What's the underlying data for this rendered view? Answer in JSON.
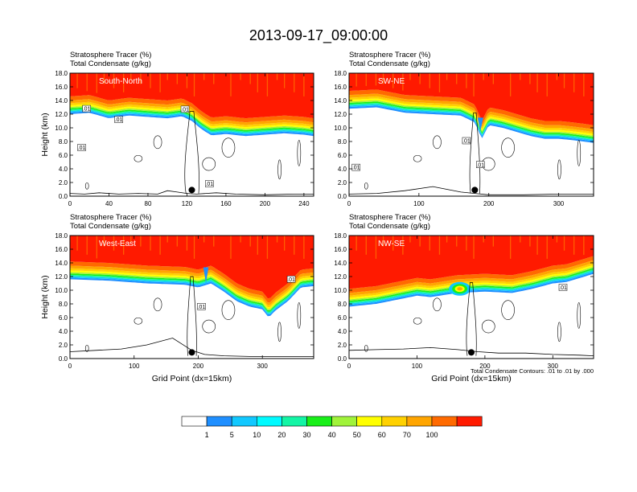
{
  "figure": {
    "title": "2013-09-17_09:00:00",
    "note": "Total Condensate Contours: .01 to .01 by .000"
  },
  "colors": {
    "levels": [
      "#ffffff",
      "#1f8fff",
      "#11c8ff",
      "#00fbff",
      "#13f5a5",
      "#19ef19",
      "#a0f33a",
      "#ffff00",
      "#ffd100",
      "#ffa500",
      "#ff6a00",
      "#ff1a00"
    ],
    "contour": "#000000",
    "frame": "#000000"
  },
  "legend": {
    "labels": [
      "1",
      "5",
      "10",
      "20",
      "30",
      "40",
      "50",
      "60",
      "70",
      "100"
    ]
  },
  "chart_data": [
    {
      "type": "heatmap",
      "region": "South-North",
      "title_lines": [
        "Stratosphere Tracer   (%)",
        "Total Condensate   (g/kg)"
      ],
      "ylabel": "Height (km)",
      "xlabel": "",
      "xlim": [
        0,
        250
      ],
      "ylim": [
        0,
        18
      ],
      "xticks": [
        "0",
        "40",
        "80",
        "120",
        "160",
        "200",
        "240"
      ],
      "yticks": [
        "0.0",
        "2.0",
        "4.0",
        "6.0",
        "8.0",
        "10.0",
        "12.0",
        "14.0",
        "16.0",
        "18.0"
      ],
      "tropopause": [
        [
          0,
          14.6
        ],
        [
          20,
          14.8
        ],
        [
          40,
          14.0
        ],
        [
          60,
          14.4
        ],
        [
          80,
          14.2
        ],
        [
          100,
          14.0
        ],
        [
          115,
          14.3
        ],
        [
          125,
          13.6
        ],
        [
          135,
          12.4
        ],
        [
          145,
          11.5
        ],
        [
          160,
          11.7
        ],
        [
          180,
          11.4
        ],
        [
          200,
          11.6
        ],
        [
          220,
          11.8
        ],
        [
          240,
          11.6
        ],
        [
          250,
          11.4
        ]
      ],
      "bump": null,
      "deep_cols": [],
      "contour_labels": [
        {
          "x": 17,
          "y": 12.7,
          "text": ".01"
        },
        {
          "x": 50,
          "y": 11.1,
          "text": ".01"
        },
        {
          "x": 12,
          "y": 7.0,
          "text": ".01"
        },
        {
          "x": 118,
          "y": 12.6,
          "text": ".01"
        },
        {
          "x": 143,
          "y": 1.7,
          "text": ".01"
        }
      ],
      "marker": {
        "x": 125,
        "y": 0.9
      },
      "terrain": [
        [
          0,
          0.4
        ],
        [
          15,
          0.3
        ],
        [
          30,
          0.5
        ],
        [
          50,
          0.3
        ],
        [
          70,
          0.4
        ],
        [
          90,
          0.3
        ],
        [
          100,
          0.8
        ],
        [
          110,
          0.6
        ],
        [
          120,
          0.4
        ],
        [
          130,
          0.3
        ],
        [
          150,
          0.5
        ],
        [
          170,
          0.3
        ],
        [
          200,
          0.2
        ],
        [
          230,
          0.3
        ],
        [
          250,
          0.3
        ]
      ]
    },
    {
      "type": "heatmap",
      "region": "SW-NE",
      "title_lines": [
        "Stratosphere Tracer   (%)",
        "Total Condensate   (g/kg)"
      ],
      "ylabel": "",
      "xlabel": "",
      "xlim": [
        0,
        350
      ],
      "ylim": [
        0,
        18
      ],
      "xticks": [
        "0",
        "100",
        "200",
        "300"
      ],
      "yticks": [
        "0.0",
        "2.0",
        "4.0",
        "6.0",
        "8.0",
        "10.0",
        "12.0",
        "14.0",
        "16.0",
        "18.0"
      ],
      "tropopause": [
        [
          0,
          15.4
        ],
        [
          40,
          15.6
        ],
        [
          80,
          14.8
        ],
        [
          120,
          14.6
        ],
        [
          160,
          14.4
        ],
        [
          180,
          13.4
        ],
        [
          190,
          11.0
        ],
        [
          200,
          13.0
        ],
        [
          220,
          12.6
        ],
        [
          240,
          12.0
        ],
        [
          260,
          11.4
        ],
        [
          280,
          11.0
        ],
        [
          300,
          11.0
        ],
        [
          320,
          10.8
        ],
        [
          350,
          10.4
        ]
      ],
      "bump": null,
      "deep_cols": [
        {
          "x": 188,
          "top": 9.5
        }
      ],
      "contour_labels": [
        {
          "x": 10,
          "y": 4.1,
          "text": ".01"
        },
        {
          "x": 168,
          "y": 8.0,
          "text": ".01"
        },
        {
          "x": 188,
          "y": 4.5,
          "text": ".01"
        }
      ],
      "marker": {
        "x": 180,
        "y": 0.9
      },
      "terrain": [
        [
          0,
          0.3
        ],
        [
          40,
          0.4
        ],
        [
          80,
          0.8
        ],
        [
          120,
          1.4
        ],
        [
          140,
          1.0
        ],
        [
          160,
          0.6
        ],
        [
          180,
          0.4
        ],
        [
          200,
          0.2
        ],
        [
          250,
          0.2
        ],
        [
          300,
          0.3
        ],
        [
          350,
          0.3
        ]
      ]
    },
    {
      "type": "heatmap",
      "region": "West-East",
      "title_lines": [
        "Stratosphere Tracer   (%)",
        "Total Condensate   (g/kg)"
      ],
      "ylabel": "Height (km)",
      "xlabel": "Grid Point (dx=15km)",
      "xlim": [
        0,
        380
      ],
      "ylim": [
        0,
        18
      ],
      "xticks": [
        "0",
        "100",
        "200",
        "300"
      ],
      "yticks": [
        "0.0",
        "2.0",
        "4.0",
        "6.0",
        "8.0",
        "10.0",
        "12.0",
        "14.0",
        "16.0",
        "18.0"
      ],
      "tropopause": [
        [
          0,
          14.2
        ],
        [
          60,
          14.0
        ],
        [
          120,
          13.6
        ],
        [
          180,
          13.4
        ],
        [
          200,
          13.0
        ],
        [
          220,
          13.6
        ],
        [
          240,
          12.4
        ],
        [
          260,
          11.0
        ],
        [
          280,
          10.2
        ],
        [
          300,
          9.8
        ],
        [
          310,
          8.6
        ],
        [
          320,
          9.6
        ],
        [
          340,
          11.0
        ],
        [
          360,
          13.0
        ],
        [
          380,
          13.2
        ]
      ],
      "bump": null,
      "deep_cols": [
        {
          "x": 212,
          "top": 11.0
        }
      ],
      "contour_labels": [
        {
          "x": 205,
          "y": 7.5,
          "text": ".01"
        },
        {
          "x": 345,
          "y": 11.5,
          "text": ".01"
        }
      ],
      "marker": {
        "x": 190,
        "y": 0.9
      },
      "terrain": [
        [
          0,
          1.0
        ],
        [
          40,
          1.2
        ],
        [
          80,
          1.4
        ],
        [
          120,
          2.0
        ],
        [
          160,
          3.0
        ],
        [
          190,
          1.2
        ],
        [
          210,
          0.6
        ],
        [
          240,
          0.4
        ],
        [
          280,
          0.3
        ],
        [
          320,
          0.3
        ],
        [
          380,
          0.3
        ]
      ]
    },
    {
      "type": "heatmap",
      "region": "NW-SE",
      "title_lines": [
        "Stratosphere Tracer   (%)",
        "Total Condensate   (g/kg)"
      ],
      "ylabel": "",
      "xlabel": "Grid Point (dx=15km)",
      "xlim": [
        0,
        360
      ],
      "ylim": [
        0,
        18
      ],
      "xticks": [
        "0",
        "100",
        "200",
        "300"
      ],
      "yticks": [
        "0.0",
        "2.0",
        "4.0",
        "6.0",
        "8.0",
        "10.0",
        "12.0",
        "14.0",
        "16.0",
        "18.0"
      ],
      "tropopause": [
        [
          0,
          10.2
        ],
        [
          40,
          10.6
        ],
        [
          70,
          11.2
        ],
        [
          100,
          11.8
        ],
        [
          120,
          11.6
        ],
        [
          160,
          12.2
        ],
        [
          200,
          12.4
        ],
        [
          240,
          12.2
        ],
        [
          270,
          12.8
        ],
        [
          300,
          13.6
        ],
        [
          320,
          13.8
        ],
        [
          340,
          14.4
        ],
        [
          360,
          15.0
        ]
      ],
      "bump": {
        "x": 163,
        "y": 10.2,
        "rx": 16,
        "ry": 1.0
      },
      "deep_cols": [],
      "contour_labels": [
        {
          "x": 315,
          "y": 10.3,
          "text": ".01"
        }
      ],
      "marker": {
        "x": 180,
        "y": 0.9
      },
      "terrain": [
        [
          0,
          1.2
        ],
        [
          40,
          1.3
        ],
        [
          80,
          1.4
        ],
        [
          120,
          1.6
        ],
        [
          160,
          1.3
        ],
        [
          190,
          1.0
        ],
        [
          220,
          0.8
        ],
        [
          260,
          0.8
        ],
        [
          300,
          0.6
        ],
        [
          340,
          0.5
        ],
        [
          360,
          0.4
        ]
      ]
    }
  ]
}
